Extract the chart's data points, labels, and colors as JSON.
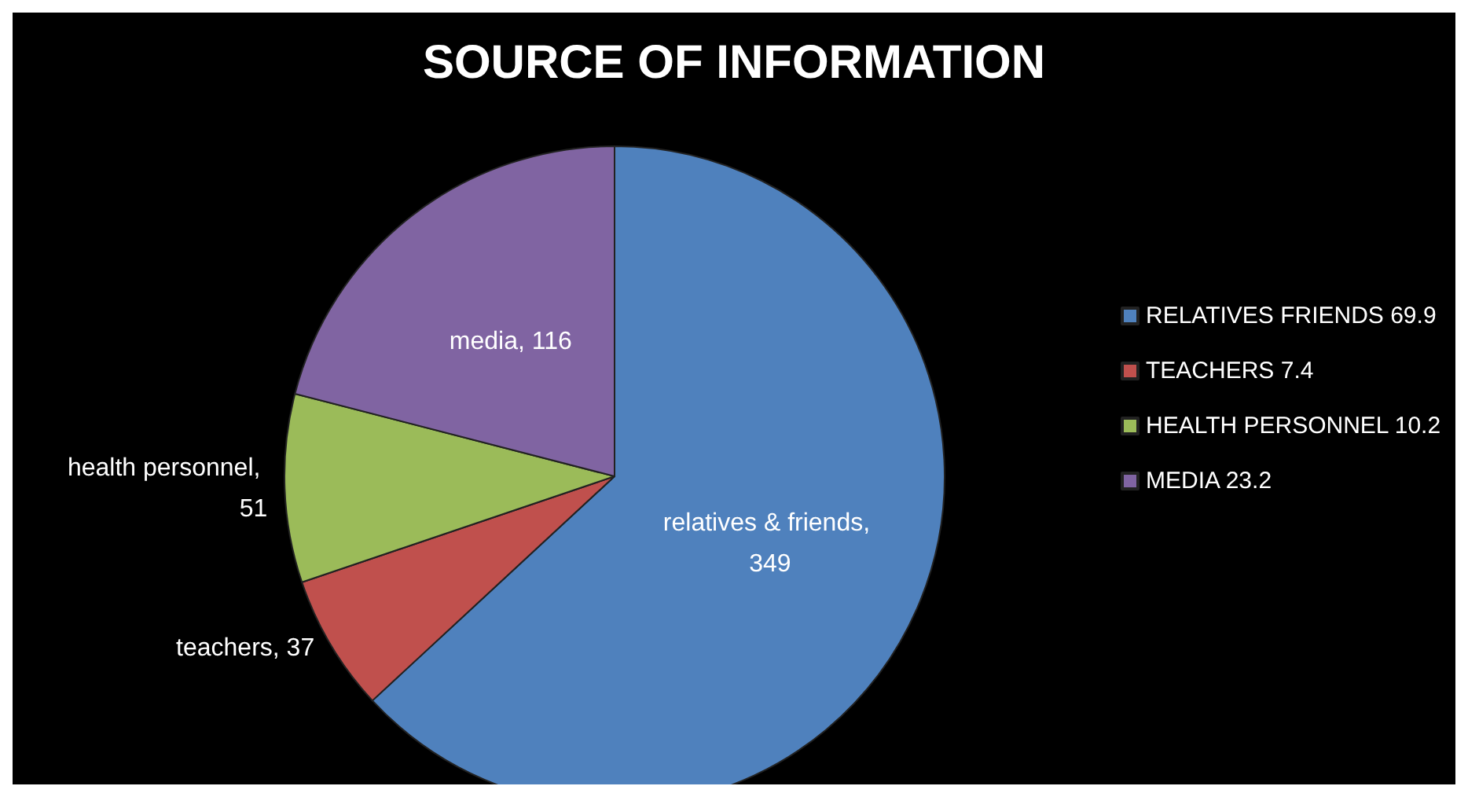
{
  "chart_data": {
    "type": "pie",
    "title": "SOURCE OF INFORMATION",
    "categories": [
      "RELATIVES FRIENDS 69.9",
      "TEACHERS 7.4",
      "HEALTH PERSONNEL 10.2",
      "MEDIA 23.2"
    ],
    "values": [
      349,
      37,
      51,
      116
    ],
    "colors": [
      "#4f81bd",
      "#c0504d",
      "#9bbb59",
      "#8064a2"
    ],
    "value_labels": [
      "relatives & friends, 349",
      "teachers, 37",
      "health personnel, 51",
      "media, 116"
    ],
    "legend": "right"
  }
}
